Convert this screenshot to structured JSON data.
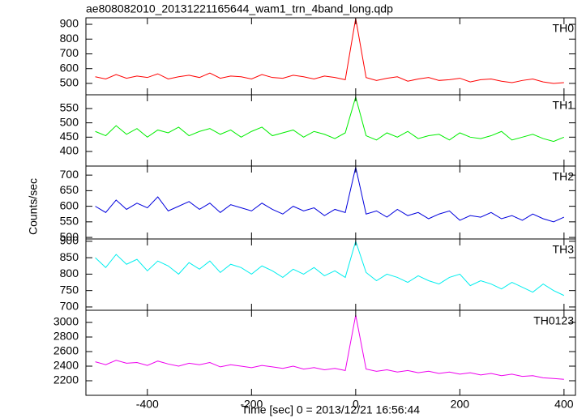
{
  "chart_data": [
    {
      "type": "line",
      "title": "ae808082010_20131221165644_wam1_trn_4band_long.qdp",
      "ylabel": "Counts/sec",
      "x": [
        -500,
        -480,
        -460,
        -440,
        -420,
        -400,
        -380,
        -360,
        -340,
        -320,
        -300,
        -280,
        -260,
        -240,
        -220,
        -200,
        -180,
        -160,
        -140,
        -120,
        -100,
        -80,
        -60,
        -40,
        -20,
        0,
        20,
        40,
        60,
        80,
        100,
        120,
        140,
        160,
        180,
        200,
        220,
        240,
        260,
        280,
        300,
        320,
        340,
        360,
        380,
        400
      ],
      "ylim": [
        423,
        944
      ],
      "yticks": [
        500,
        600,
        700,
        800,
        900
      ],
      "series": [
        {
          "name": "TH0",
          "color": "#ff0000",
          "values": [
            545,
            530,
            560,
            535,
            550,
            540,
            565,
            530,
            545,
            555,
            540,
            570,
            535,
            550,
            545,
            530,
            560,
            540,
            535,
            555,
            545,
            530,
            550,
            540,
            525,
            940,
            540,
            520,
            535,
            545,
            515,
            530,
            540,
            520,
            525,
            535,
            510,
            525,
            530,
            515,
            505,
            520,
            530,
            510,
            500,
            505
          ]
        }
      ]
    },
    {
      "type": "line",
      "x": [
        -500,
        -480,
        -460,
        -440,
        -420,
        -400,
        -380,
        -360,
        -340,
        -320,
        -300,
        -280,
        -260,
        -240,
        -220,
        -200,
        -180,
        -160,
        -140,
        -120,
        -100,
        -80,
        -60,
        -40,
        -20,
        0,
        20,
        40,
        60,
        80,
        100,
        120,
        140,
        160,
        180,
        200,
        220,
        240,
        260,
        280,
        300,
        320,
        340,
        360,
        380,
        400
      ],
      "ylim": [
        349,
        598
      ],
      "yticks": [
        400,
        450,
        500,
        550
      ],
      "series": [
        {
          "name": "TH1",
          "color": "#00ee00",
          "values": [
            470,
            455,
            490,
            460,
            480,
            450,
            475,
            465,
            485,
            455,
            470,
            480,
            460,
            475,
            450,
            470,
            485,
            455,
            465,
            475,
            450,
            470,
            460,
            445,
            465,
            590,
            455,
            440,
            465,
            450,
            470,
            445,
            455,
            460,
            440,
            465,
            450,
            445,
            455,
            470,
            440,
            450,
            460,
            445,
            435,
            450
          ]
        }
      ]
    },
    {
      "type": "line",
      "x": [
        -500,
        -480,
        -460,
        -440,
        -420,
        -400,
        -380,
        -360,
        -340,
        -320,
        -300,
        -280,
        -260,
        -240,
        -220,
        -200,
        -180,
        -160,
        -140,
        -120,
        -100,
        -80,
        -60,
        -40,
        -20,
        0,
        20,
        40,
        60,
        80,
        100,
        120,
        140,
        160,
        180,
        200,
        220,
        240,
        260,
        280,
        300,
        320,
        340,
        360,
        380,
        400
      ],
      "ylim": [
        495,
        729
      ],
      "yticks": [
        500,
        550,
        600,
        650,
        700
      ],
      "series": [
        {
          "name": "TH2",
          "color": "#0000dd",
          "values": [
            600,
            580,
            620,
            590,
            610,
            595,
            630,
            585,
            600,
            615,
            590,
            610,
            580,
            605,
            595,
            585,
            610,
            590,
            575,
            600,
            585,
            595,
            570,
            590,
            580,
            725,
            575,
            585,
            565,
            590,
            570,
            580,
            560,
            575,
            585,
            555,
            570,
            565,
            580,
            560,
            570,
            555,
            575,
            560,
            550,
            565
          ]
        }
      ]
    },
    {
      "type": "line",
      "x": [
        -500,
        -480,
        -460,
        -440,
        -420,
        -400,
        -380,
        -360,
        -340,
        -320,
        -300,
        -280,
        -260,
        -240,
        -220,
        -200,
        -180,
        -160,
        -140,
        -120,
        -100,
        -80,
        -60,
        -40,
        -20,
        0,
        20,
        40,
        60,
        80,
        100,
        120,
        140,
        160,
        180,
        200,
        220,
        240,
        260,
        280,
        300,
        320,
        340,
        360,
        380,
        400
      ],
      "ylim": [
        690,
        907
      ],
      "yticks": [
        700,
        750,
        800,
        850,
        900
      ],
      "series": [
        {
          "name": "TH3",
          "color": "#00eeee",
          "values": [
            850,
            820,
            860,
            830,
            845,
            810,
            840,
            825,
            800,
            835,
            815,
            840,
            805,
            830,
            820,
            800,
            825,
            810,
            790,
            815,
            800,
            820,
            795,
            810,
            790,
            900,
            805,
            780,
            800,
            790,
            775,
            795,
            780,
            770,
            790,
            800,
            765,
            780,
            770,
            755,
            775,
            760,
            745,
            770,
            750,
            735
          ]
        }
      ]
    },
    {
      "type": "line",
      "xlabel": "Time [sec] 0 = 2013/12/21 16:56:44",
      "x": [
        -500,
        -480,
        -460,
        -440,
        -420,
        -400,
        -380,
        -360,
        -340,
        -320,
        -300,
        -280,
        -260,
        -240,
        -220,
        -200,
        -180,
        -160,
        -140,
        -120,
        -100,
        -80,
        -60,
        -40,
        -20,
        0,
        20,
        40,
        60,
        80,
        100,
        120,
        140,
        160,
        180,
        200,
        220,
        240,
        260,
        280,
        300,
        320,
        340,
        360,
        380,
        400
      ],
      "xlim": [
        -518,
        422
      ],
      "xticks": [
        -400,
        -200,
        0,
        200,
        400
      ],
      "ylim": [
        2000,
        3167
      ],
      "yticks": [
        2200,
        2400,
        2600,
        2800,
        3000
      ],
      "series": [
        {
          "name": "TH0123",
          "color": "#ee00ee",
          "values": [
            2460,
            2420,
            2480,
            2440,
            2450,
            2410,
            2470,
            2430,
            2400,
            2440,
            2420,
            2450,
            2390,
            2420,
            2400,
            2380,
            2410,
            2390,
            2370,
            2400,
            2360,
            2380,
            2350,
            2370,
            2340,
            3100,
            2360,
            2330,
            2350,
            2320,
            2340,
            2310,
            2330,
            2300,
            2320,
            2290,
            2310,
            2280,
            2300,
            2270,
            2290,
            2260,
            2270,
            2240,
            2230,
            2220
          ]
        }
      ]
    }
  ]
}
